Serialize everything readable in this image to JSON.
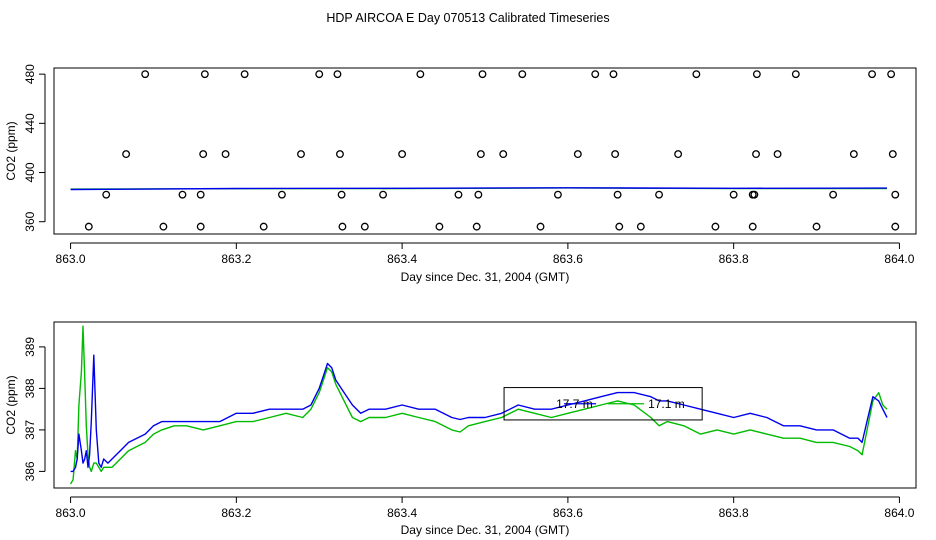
{
  "title": "HDP AIRCOA E  Day 070513  Calibrated Timeseries",
  "colors": {
    "series_green": "#00bb00",
    "series_blue": "#0000ee",
    "points": "#000000"
  },
  "chart_data": [
    {
      "type": "scatter",
      "xlabel": "Day since Dec. 31, 2004 (GMT)",
      "ylabel": "CO2 (ppm)",
      "xlim": [
        862.98,
        864.02
      ],
      "ylim": [
        350,
        485
      ],
      "x_ticks": [
        863.0,
        863.2,
        863.4,
        863.6,
        863.8,
        864.0
      ],
      "x_tick_labels": [
        "863.0",
        "863.2",
        "863.4",
        "863.6",
        "863.8",
        "864.0"
      ],
      "y_ticks": [
        360,
        400,
        440,
        480
      ],
      "y_tick_labels": [
        "360",
        "400",
        "440",
        "480"
      ],
      "reference_points": [
        {
          "x": 863.09,
          "y": 480
        },
        {
          "x": 863.162,
          "y": 480
        },
        {
          "x": 863.21,
          "y": 480
        },
        {
          "x": 863.3,
          "y": 480
        },
        {
          "x": 863.322,
          "y": 480
        },
        {
          "x": 863.422,
          "y": 480
        },
        {
          "x": 863.497,
          "y": 480
        },
        {
          "x": 863.545,
          "y": 480
        },
        {
          "x": 863.633,
          "y": 480
        },
        {
          "x": 863.655,
          "y": 480
        },
        {
          "x": 863.755,
          "y": 480
        },
        {
          "x": 863.828,
          "y": 480
        },
        {
          "x": 863.875,
          "y": 480
        },
        {
          "x": 863.967,
          "y": 480
        },
        {
          "x": 863.99,
          "y": 480
        },
        {
          "x": 863.067,
          "y": 415
        },
        {
          "x": 863.16,
          "y": 415
        },
        {
          "x": 863.187,
          "y": 415
        },
        {
          "x": 863.278,
          "y": 415
        },
        {
          "x": 863.325,
          "y": 415
        },
        {
          "x": 863.4,
          "y": 415
        },
        {
          "x": 863.495,
          "y": 415
        },
        {
          "x": 863.522,
          "y": 415
        },
        {
          "x": 863.612,
          "y": 415
        },
        {
          "x": 863.657,
          "y": 415
        },
        {
          "x": 863.733,
          "y": 415
        },
        {
          "x": 863.827,
          "y": 415
        },
        {
          "x": 863.853,
          "y": 415
        },
        {
          "x": 863.945,
          "y": 415
        },
        {
          "x": 863.992,
          "y": 415
        },
        {
          "x": 863.043,
          "y": 382
        },
        {
          "x": 863.135,
          "y": 382
        },
        {
          "x": 863.157,
          "y": 382
        },
        {
          "x": 863.255,
          "y": 382
        },
        {
          "x": 863.327,
          "y": 382
        },
        {
          "x": 863.377,
          "y": 382
        },
        {
          "x": 863.468,
          "y": 382
        },
        {
          "x": 863.492,
          "y": 382
        },
        {
          "x": 863.588,
          "y": 382
        },
        {
          "x": 863.66,
          "y": 382
        },
        {
          "x": 863.71,
          "y": 382
        },
        {
          "x": 863.8,
          "y": 382
        },
        {
          "x": 863.823,
          "y": 382
        },
        {
          "x": 863.825,
          "y": 382
        },
        {
          "x": 863.92,
          "y": 382
        },
        {
          "x": 863.995,
          "y": 382
        },
        {
          "x": 863.022,
          "y": 356
        },
        {
          "x": 863.112,
          "y": 356
        },
        {
          "x": 863.157,
          "y": 356
        },
        {
          "x": 863.233,
          "y": 356
        },
        {
          "x": 863.328,
          "y": 356
        },
        {
          "x": 863.355,
          "y": 356
        },
        {
          "x": 863.445,
          "y": 356
        },
        {
          "x": 863.49,
          "y": 356
        },
        {
          "x": 863.567,
          "y": 356
        },
        {
          "x": 863.662,
          "y": 356
        },
        {
          "x": 863.688,
          "y": 356
        },
        {
          "x": 863.778,
          "y": 356
        },
        {
          "x": 863.823,
          "y": 356
        },
        {
          "x": 863.9,
          "y": 356
        },
        {
          "x": 863.995,
          "y": 356
        }
      ],
      "series": [
        {
          "x": [
            863.0,
            863.2,
            863.4,
            863.6,
            863.8,
            863.985
          ],
          "values": [
            386.5,
            386.8,
            386.9,
            387.5,
            386.9,
            387.0
          ]
        },
        {
          "x": [
            863.0,
            863.2,
            863.4,
            863.6,
            863.8,
            863.985
          ],
          "values": [
            386.2,
            387.0,
            387.2,
            387.6,
            387.2,
            387.3
          ]
        }
      ]
    },
    {
      "type": "line",
      "xlabel": "Day since Dec. 31, 2004 (GMT)",
      "ylabel": "CO2 (ppm)",
      "xlim": [
        862.98,
        864.02
      ],
      "ylim": [
        385.6,
        389.6
      ],
      "x_ticks": [
        863.0,
        863.2,
        863.4,
        863.6,
        863.8,
        864.0
      ],
      "x_tick_labels": [
        "863.0",
        "863.2",
        "863.4",
        "863.6",
        "863.8",
        "864.0"
      ],
      "y_ticks": [
        386,
        387,
        388,
        389
      ],
      "y_tick_labels": [
        "386",
        "387",
        "388",
        "389"
      ],
      "legend": {
        "box_x": [
          863.523,
          863.762
        ],
        "box_y": [
          387.24,
          388.02
        ],
        "entries": [
          "17.7 m",
          "17.1 m"
        ]
      },
      "series": [
        {
          "name": "17.1 m",
          "x": [
            863.0,
            863.003,
            863.006,
            863.008,
            863.01,
            863.013,
            863.015,
            863.017,
            863.019,
            863.021,
            863.023,
            863.025,
            863.028,
            863.031,
            863.034,
            863.037,
            863.04,
            863.045,
            863.05,
            863.06,
            863.07,
            863.08,
            863.09,
            863.1,
            863.11,
            863.125,
            863.14,
            863.16,
            863.18,
            863.2,
            863.22,
            863.24,
            863.26,
            863.28,
            863.29,
            863.3,
            863.305,
            863.31,
            863.315,
            863.32,
            863.33,
            863.34,
            863.35,
            863.36,
            863.38,
            863.4,
            863.42,
            863.44,
            863.46,
            863.47,
            863.48,
            863.5,
            863.52,
            863.54,
            863.56,
            863.58,
            863.6,
            863.62,
            863.64,
            863.66,
            863.68,
            863.7,
            863.71,
            863.72,
            863.74,
            863.76,
            863.78,
            863.8,
            863.82,
            863.84,
            863.86,
            863.88,
            863.9,
            863.92,
            863.94,
            863.95,
            863.955,
            863.962,
            863.968,
            863.975,
            863.98,
            863.985
          ],
          "values": [
            385.7,
            385.8,
            386.5,
            386.3,
            387.6,
            388.4,
            389.5,
            388.3,
            387.1,
            386.4,
            386.1,
            386.0,
            386.2,
            386.2,
            386.1,
            386.0,
            386.1,
            386.1,
            386.1,
            386.3,
            386.5,
            386.6,
            386.7,
            386.9,
            387.0,
            387.1,
            387.1,
            387.0,
            387.1,
            387.2,
            387.2,
            387.3,
            387.4,
            387.3,
            387.5,
            387.9,
            388.2,
            388.5,
            388.4,
            388.1,
            387.7,
            387.3,
            387.2,
            387.3,
            387.3,
            387.4,
            387.3,
            387.2,
            387.0,
            386.95,
            387.1,
            387.2,
            387.3,
            387.5,
            387.4,
            387.3,
            387.4,
            387.5,
            387.6,
            387.7,
            387.6,
            387.3,
            387.1,
            387.2,
            387.1,
            386.9,
            387.0,
            386.9,
            387.0,
            386.9,
            386.8,
            386.8,
            386.7,
            386.7,
            386.6,
            386.5,
            386.4,
            387.1,
            387.7,
            387.9,
            387.6,
            387.5
          ]
        },
        {
          "name": "17.7 m",
          "x": [
            863.0,
            863.003,
            863.006,
            863.008,
            863.01,
            863.013,
            863.015,
            863.017,
            863.019,
            863.021,
            863.023,
            863.025,
            863.028,
            863.031,
            863.034,
            863.037,
            863.04,
            863.045,
            863.05,
            863.06,
            863.07,
            863.08,
            863.09,
            863.1,
            863.11,
            863.125,
            863.14,
            863.16,
            863.18,
            863.2,
            863.22,
            863.24,
            863.26,
            863.28,
            863.29,
            863.3,
            863.305,
            863.31,
            863.315,
            863.32,
            863.33,
            863.34,
            863.35,
            863.36,
            863.38,
            863.4,
            863.42,
            863.44,
            863.46,
            863.47,
            863.48,
            863.5,
            863.52,
            863.54,
            863.56,
            863.58,
            863.6,
            863.62,
            863.64,
            863.66,
            863.68,
            863.7,
            863.71,
            863.72,
            863.74,
            863.76,
            863.78,
            863.8,
            863.82,
            863.84,
            863.86,
            863.88,
            863.9,
            863.92,
            863.94,
            863.95,
            863.955,
            863.962,
            863.968,
            863.975,
            863.98,
            863.985
          ],
          "values": [
            386.0,
            386.0,
            386.1,
            386.3,
            386.9,
            386.5,
            386.2,
            386.3,
            386.5,
            386.1,
            386.4,
            387.2,
            388.8,
            387.0,
            386.2,
            386.1,
            386.3,
            386.2,
            386.3,
            386.5,
            386.7,
            386.8,
            386.9,
            387.1,
            387.2,
            387.2,
            387.2,
            387.2,
            387.2,
            387.4,
            387.4,
            387.5,
            387.5,
            387.5,
            387.6,
            388.0,
            388.3,
            388.6,
            388.5,
            388.2,
            387.9,
            387.6,
            387.4,
            387.5,
            387.5,
            387.6,
            387.5,
            387.5,
            387.3,
            387.25,
            387.3,
            387.3,
            387.4,
            387.6,
            387.5,
            387.5,
            387.6,
            387.7,
            387.8,
            387.9,
            387.9,
            387.8,
            387.7,
            387.7,
            387.6,
            387.5,
            387.4,
            387.3,
            387.4,
            387.3,
            387.1,
            387.1,
            387.0,
            387.0,
            386.8,
            386.8,
            386.7,
            387.3,
            387.8,
            387.7,
            387.5,
            387.3
          ]
        }
      ]
    }
  ]
}
